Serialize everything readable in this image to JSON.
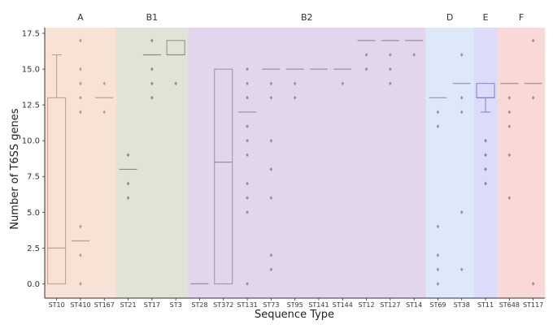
{
  "chart_data": {
    "type": "box",
    "xlabel": "Sequence Type",
    "ylabel": "Number of T6SS genes",
    "ylim": [
      -1,
      17.9
    ],
    "yticks": [
      "0.0",
      "2.5",
      "5.0",
      "7.5",
      "10.0",
      "12.5",
      "15.0",
      "17.5"
    ],
    "ytick_values": [
      0,
      2.5,
      5,
      7.5,
      10,
      12.5,
      15,
      17.5
    ],
    "grid": false,
    "groups": [
      {
        "name": "A",
        "color": "#f8e2d6",
        "categories": [
          "ST10",
          "ST410",
          "ST167"
        ]
      },
      {
        "name": "B1",
        "color": "#e0e3d6",
        "categories": [
          "ST21",
          "ST17",
          "ST3"
        ]
      },
      {
        "name": "B2",
        "color": "#e2d6ec",
        "categories": [
          "ST28",
          "ST372",
          "ST131",
          "ST73",
          "ST95",
          "ST141",
          "ST144",
          "ST12",
          "ST127",
          "ST14"
        ]
      },
      {
        "name": "D",
        "color": "#dde9fa",
        "categories": [
          "ST69",
          "ST38"
        ]
      },
      {
        "name": "E",
        "color": "#dcdcfa",
        "categories": [
          "ST11"
        ]
      },
      {
        "name": "F",
        "color": "#f9d8d8",
        "categories": [
          "ST648",
          "ST117"
        ]
      }
    ],
    "boxes": [
      {
        "category": "ST10",
        "q1": 0,
        "median": 2.5,
        "q3": 13,
        "whisker_low": 0,
        "whisker_high": 16,
        "outliers": [],
        "color": "#c09a8a"
      },
      {
        "category": "ST410",
        "q1": 3,
        "median": 3,
        "q3": 3,
        "whisker_low": 3,
        "whisker_high": 3,
        "outliers": [
          17,
          15,
          14,
          13,
          12,
          4,
          2,
          0
        ],
        "color": "#c09a8a"
      },
      {
        "category": "ST167",
        "q1": 13,
        "median": 13,
        "q3": 13,
        "whisker_low": 13,
        "whisker_high": 13,
        "outliers": [
          14,
          12
        ],
        "color": "#c09a8a"
      },
      {
        "category": "ST21",
        "q1": 8,
        "median": 8,
        "q3": 8,
        "whisker_low": 8,
        "whisker_high": 8,
        "outliers": [
          9,
          7,
          6
        ],
        "color": "#8a907c"
      },
      {
        "category": "ST17",
        "q1": 16,
        "median": 16,
        "q3": 16,
        "whisker_low": 16,
        "whisker_high": 16,
        "outliers": [
          17,
          15,
          14,
          13
        ],
        "color": "#8a907c"
      },
      {
        "category": "ST3",
        "q1": 16,
        "median": 16,
        "q3": 17,
        "whisker_low": 16,
        "whisker_high": 17,
        "outliers": [
          14
        ],
        "color": "#8a907c"
      },
      {
        "category": "ST28",
        "q1": 0,
        "median": 0,
        "q3": 0,
        "whisker_low": 0,
        "whisker_high": 0,
        "outliers": [],
        "color": "#a08aa8"
      },
      {
        "category": "ST372",
        "q1": 0,
        "median": 8.5,
        "q3": 15,
        "whisker_low": 0,
        "whisker_high": 15,
        "outliers": [],
        "color": "#a08aa8"
      },
      {
        "category": "ST131",
        "q1": 12,
        "median": 12,
        "q3": 12,
        "whisker_low": 12,
        "whisker_high": 12,
        "outliers": [
          15,
          14,
          13,
          11,
          10,
          9,
          7,
          6,
          5,
          0
        ],
        "color": "#a08aa8"
      },
      {
        "category": "ST73",
        "q1": 15,
        "median": 15,
        "q3": 15,
        "whisker_low": 15,
        "whisker_high": 15,
        "outliers": [
          14,
          13,
          10,
          8,
          6,
          2,
          1
        ],
        "color": "#a08aa8"
      },
      {
        "category": "ST95",
        "q1": 15,
        "median": 15,
        "q3": 15,
        "whisker_low": 15,
        "whisker_high": 15,
        "outliers": [
          14,
          13
        ],
        "color": "#a08aa8"
      },
      {
        "category": "ST141",
        "q1": 15,
        "median": 15,
        "q3": 15,
        "whisker_low": 15,
        "whisker_high": 15,
        "outliers": [],
        "color": "#a08aa8"
      },
      {
        "category": "ST144",
        "q1": 15,
        "median": 15,
        "q3": 15,
        "whisker_low": 15,
        "whisker_high": 15,
        "outliers": [
          14
        ],
        "color": "#a08aa8"
      },
      {
        "category": "ST12",
        "q1": 17,
        "median": 17,
        "q3": 17,
        "whisker_low": 17,
        "whisker_high": 17,
        "outliers": [
          16,
          15
        ],
        "color": "#a08aa8"
      },
      {
        "category": "ST127",
        "q1": 17,
        "median": 17,
        "q3": 17,
        "whisker_low": 17,
        "whisker_high": 17,
        "outliers": [
          16,
          15,
          14
        ],
        "color": "#a08aa8"
      },
      {
        "category": "ST14",
        "q1": 17,
        "median": 17,
        "q3": 17,
        "whisker_low": 17,
        "whisker_high": 17,
        "outliers": [
          16
        ],
        "color": "#a08aa8"
      },
      {
        "category": "ST69",
        "q1": 13,
        "median": 13,
        "q3": 13,
        "whisker_low": 13,
        "whisker_high": 13,
        "outliers": [
          12,
          11,
          4,
          2,
          1,
          0
        ],
        "color": "#8a9ab0"
      },
      {
        "category": "ST38",
        "q1": 14,
        "median": 14,
        "q3": 14,
        "whisker_low": 14,
        "whisker_high": 14,
        "outliers": [
          16,
          13,
          12,
          5,
          1
        ],
        "color": "#8a9ab0"
      },
      {
        "category": "ST11",
        "q1": 13,
        "median": 13,
        "q3": 14,
        "whisker_low": 12,
        "whisker_high": 14,
        "outliers": [
          10,
          9,
          8,
          7
        ],
        "color": "#8080c8"
      },
      {
        "category": "ST648",
        "q1": 14,
        "median": 14,
        "q3": 14,
        "whisker_low": 14,
        "whisker_high": 14,
        "outliers": [
          13,
          12,
          11,
          9,
          6
        ],
        "color": "#b08888"
      },
      {
        "category": "ST117",
        "q1": 14,
        "median": 14,
        "q3": 14,
        "whisker_low": 14,
        "whisker_high": 14,
        "outliers": [
          17,
          13,
          0
        ],
        "color": "#b08888"
      }
    ]
  }
}
